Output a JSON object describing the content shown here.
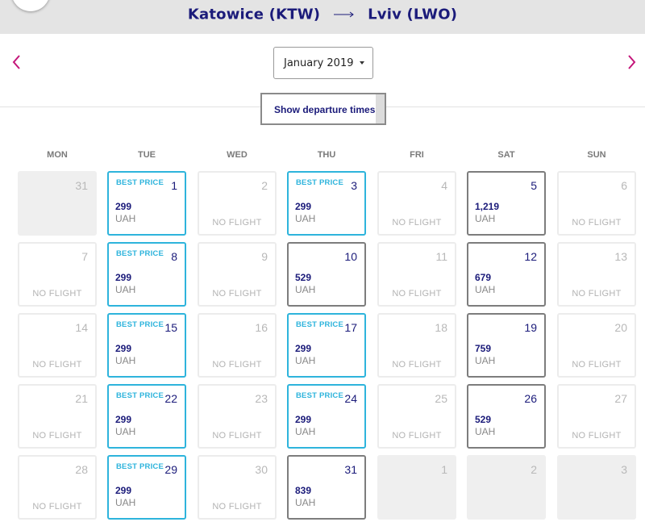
{
  "header": {
    "origin": "Katowice (KTW)",
    "destination": "Lviv (LWO)"
  },
  "month_selector": {
    "value": "January 2019"
  },
  "departure_button": {
    "label": "Show departure times"
  },
  "weekdays": [
    "MON",
    "TUE",
    "WED",
    "THU",
    "FRI",
    "SAT",
    "SUN"
  ],
  "labels": {
    "best_price": "BEST PRICE",
    "no_flight": "NO FLIGHT",
    "currency": "UAH"
  },
  "weeks": [
    [
      {
        "day": "31",
        "type": "outside"
      },
      {
        "day": "1",
        "type": "best",
        "price": "299"
      },
      {
        "day": "2",
        "type": "empty"
      },
      {
        "day": "3",
        "type": "best",
        "price": "299"
      },
      {
        "day": "4",
        "type": "empty"
      },
      {
        "day": "5",
        "type": "priced",
        "price": "1,219"
      },
      {
        "day": "6",
        "type": "empty"
      }
    ],
    [
      {
        "day": "7",
        "type": "empty"
      },
      {
        "day": "8",
        "type": "best",
        "price": "299"
      },
      {
        "day": "9",
        "type": "empty"
      },
      {
        "day": "10",
        "type": "priced",
        "price": "529"
      },
      {
        "day": "11",
        "type": "empty"
      },
      {
        "day": "12",
        "type": "priced",
        "price": "679"
      },
      {
        "day": "13",
        "type": "empty"
      }
    ],
    [
      {
        "day": "14",
        "type": "empty"
      },
      {
        "day": "15",
        "type": "best",
        "price": "299"
      },
      {
        "day": "16",
        "type": "empty"
      },
      {
        "day": "17",
        "type": "best",
        "price": "299"
      },
      {
        "day": "18",
        "type": "empty"
      },
      {
        "day": "19",
        "type": "priced",
        "price": "759"
      },
      {
        "day": "20",
        "type": "empty"
      }
    ],
    [
      {
        "day": "21",
        "type": "empty"
      },
      {
        "day": "22",
        "type": "best",
        "price": "299"
      },
      {
        "day": "23",
        "type": "empty"
      },
      {
        "day": "24",
        "type": "best",
        "price": "299"
      },
      {
        "day": "25",
        "type": "empty"
      },
      {
        "day": "26",
        "type": "priced",
        "price": "529"
      },
      {
        "day": "27",
        "type": "empty"
      }
    ],
    [
      {
        "day": "28",
        "type": "empty"
      },
      {
        "day": "29",
        "type": "best",
        "price": "299"
      },
      {
        "day": "30",
        "type": "empty"
      },
      {
        "day": "31",
        "type": "priced",
        "price": "839"
      },
      {
        "day": "1",
        "type": "outside"
      },
      {
        "day": "2",
        "type": "outside"
      },
      {
        "day": "3",
        "type": "outside"
      }
    ]
  ],
  "colors": {
    "brand_navy": "#1b1b7a",
    "best_price_cyan": "#2eb4dc",
    "nav_arrow_magenta": "#c4167a"
  },
  "icons": {
    "back": "back-arrow-icon",
    "route": "route-arrow-icon",
    "prev": "chevron-left-icon",
    "next": "chevron-right-icon",
    "dropdown": "caret-down-icon"
  }
}
